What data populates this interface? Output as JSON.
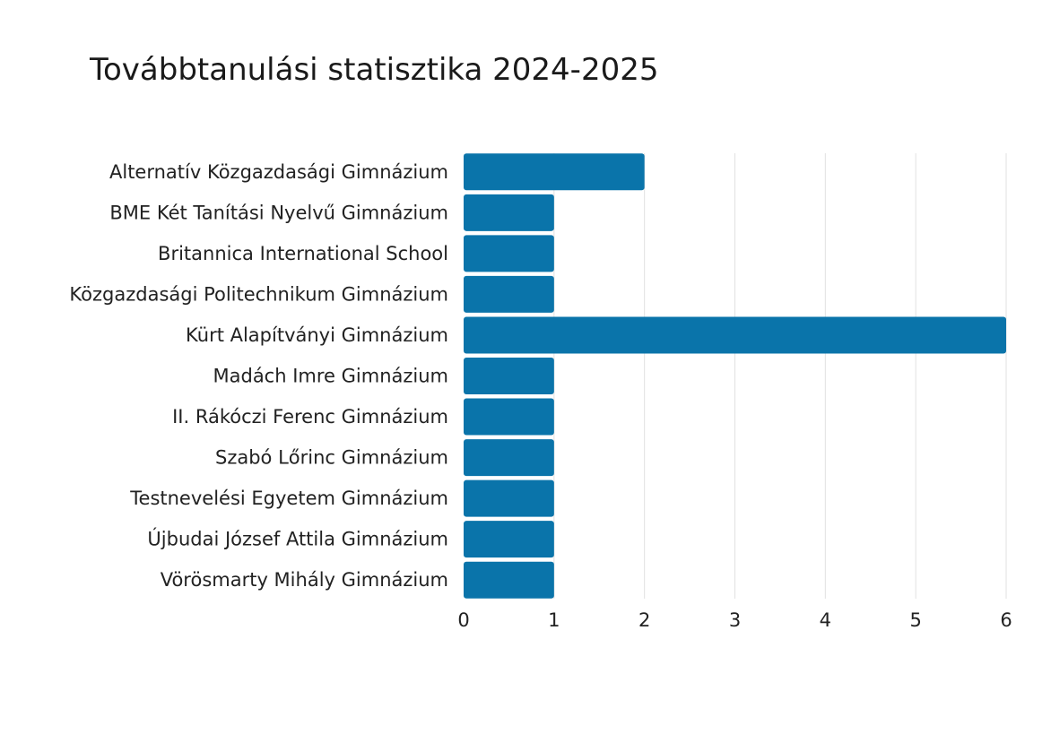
{
  "chart_data": {
    "type": "bar",
    "orientation": "horizontal",
    "title": "Továbbtanulási statisztika 2024-2025",
    "categories": [
      "Alternatív Közgazdasági Gimnázium",
      "BME Két Tanítási Nyelvű Gimnázium",
      "Britannica International School",
      "Közgazdasági Politechnikum Gimnázium",
      "Kürt Alapítványi Gimnázium",
      "Madách Imre Gimnázium",
      "II. Rákóczi Ferenc Gimnázium",
      "Szabó Lőrinc Gimnázium",
      "Testnevelési Egyetem Gimnázium",
      "Újbudai József Attila Gimnázium",
      "Vörösmarty Mihály Gimnázium"
    ],
    "values": [
      2,
      1,
      1,
      1,
      6,
      1,
      1,
      1,
      1,
      1,
      1
    ],
    "xlim": [
      0,
      6
    ],
    "xticks": [
      "0",
      "1",
      "2",
      "3",
      "4",
      "5",
      "6"
    ],
    "grid": "vertical",
    "bar_color": "#0a74aa"
  }
}
